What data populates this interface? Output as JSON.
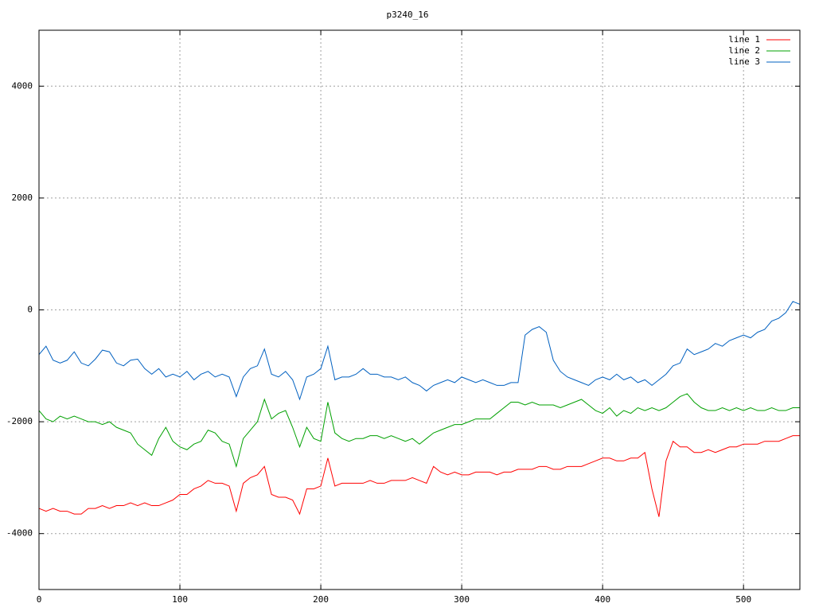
{
  "chart_data": {
    "type": "line",
    "title": "p3240_16",
    "x": [
      0,
      5,
      10,
      15,
      20,
      25,
      30,
      35,
      40,
      45,
      50,
      55,
      60,
      65,
      70,
      75,
      80,
      85,
      90,
      95,
      100,
      105,
      110,
      115,
      120,
      125,
      130,
      135,
      140,
      145,
      150,
      155,
      160,
      165,
      170,
      175,
      180,
      185,
      190,
      195,
      200,
      205,
      210,
      215,
      220,
      225,
      230,
      235,
      240,
      245,
      250,
      255,
      260,
      265,
      270,
      275,
      280,
      285,
      290,
      295,
      300,
      305,
      310,
      315,
      320,
      325,
      330,
      335,
      340,
      345,
      350,
      355,
      360,
      365,
      370,
      375,
      380,
      385,
      390,
      395,
      400,
      405,
      410,
      415,
      420,
      425,
      430,
      435,
      440,
      445,
      450,
      455,
      460,
      465,
      470,
      475,
      480,
      485,
      490,
      495,
      500,
      505,
      510,
      515,
      520,
      525,
      530,
      535,
      540
    ],
    "series": [
      {
        "name": "line 1",
        "color": "#ff0000",
        "values": [
          -3550,
          -3600,
          -3550,
          -3600,
          -3600,
          -3650,
          -3650,
          -3550,
          -3550,
          -3500,
          -3550,
          -3500,
          -3500,
          -3450,
          -3500,
          -3450,
          -3500,
          -3500,
          -3450,
          -3400,
          -3300,
          -3300,
          -3200,
          -3150,
          -3050,
          -3100,
          -3100,
          -3150,
          -3600,
          -3100,
          -3000,
          -2950,
          -2800,
          -3300,
          -3350,
          -3350,
          -3400,
          -3650,
          -3200,
          -3200,
          -3150,
          -2650,
          -3150,
          -3100,
          -3100,
          -3100,
          -3100,
          -3050,
          -3100,
          -3100,
          -3050,
          -3050,
          -3050,
          -3000,
          -3050,
          -3100,
          -2800,
          -2900,
          -2950,
          -2900,
          -2950,
          -2950,
          -2900,
          -2900,
          -2900,
          -2950,
          -2900,
          -2900,
          -2850,
          -2850,
          -2850,
          -2800,
          -2800,
          -2850,
          -2850,
          -2800,
          -2800,
          -2800,
          -2750,
          -2700,
          -2650,
          -2650,
          -2700,
          -2700,
          -2650,
          -2650,
          -2550,
          -3200,
          -3700,
          -2700,
          -2350,
          -2450,
          -2450,
          -2550,
          -2550,
          -2500,
          -2550,
          -2500,
          -2450,
          -2450,
          -2400,
          -2400,
          -2400,
          -2350,
          -2350,
          -2350,
          -2300,
          -2250,
          -2250
        ]
      },
      {
        "name": "line 2",
        "color": "#00a000",
        "values": [
          -1800,
          -1950,
          -2000,
          -1900,
          -1950,
          -1900,
          -1950,
          -2000,
          -2000,
          -2050,
          -2000,
          -2100,
          -2150,
          -2200,
          -2400,
          -2500,
          -2600,
          -2300,
          -2100,
          -2350,
          -2450,
          -2500,
          -2400,
          -2350,
          -2150,
          -2200,
          -2350,
          -2400,
          -2800,
          -2300,
          -2150,
          -2000,
          -1600,
          -1950,
          -1850,
          -1800,
          -2100,
          -2450,
          -2100,
          -2300,
          -2350,
          -1650,
          -2200,
          -2300,
          -2350,
          -2300,
          -2300,
          -2250,
          -2250,
          -2300,
          -2250,
          -2300,
          -2350,
          -2300,
          -2400,
          -2300,
          -2200,
          -2150,
          -2100,
          -2050,
          -2050,
          -2000,
          -1950,
          -1950,
          -1950,
          -1850,
          -1750,
          -1650,
          -1650,
          -1700,
          -1650,
          -1700,
          -1700,
          -1700,
          -1750,
          -1700,
          -1650,
          -1600,
          -1700,
          -1800,
          -1850,
          -1750,
          -1900,
          -1800,
          -1850,
          -1750,
          -1800,
          -1750,
          -1800,
          -1750,
          -1650,
          -1550,
          -1500,
          -1650,
          -1750,
          -1800,
          -1800,
          -1750,
          -1800,
          -1750,
          -1800,
          -1750,
          -1800,
          -1800,
          -1750,
          -1800,
          -1800,
          -1750,
          -1750
        ]
      },
      {
        "name": "line 3",
        "color": "#0060c0",
        "values": [
          -800,
          -650,
          -900,
          -950,
          -900,
          -750,
          -950,
          -1000,
          -880,
          -720,
          -750,
          -950,
          -1000,
          -900,
          -880,
          -1050,
          -1150,
          -1050,
          -1200,
          -1150,
          -1200,
          -1100,
          -1250,
          -1150,
          -1100,
          -1200,
          -1150,
          -1200,
          -1550,
          -1200,
          -1050,
          -1000,
          -700,
          -1150,
          -1200,
          -1100,
          -1250,
          -1600,
          -1200,
          -1150,
          -1050,
          -650,
          -1250,
          -1200,
          -1200,
          -1150,
          -1050,
          -1150,
          -1150,
          -1200,
          -1200,
          -1250,
          -1200,
          -1300,
          -1350,
          -1450,
          -1350,
          -1300,
          -1250,
          -1300,
          -1200,
          -1250,
          -1300,
          -1250,
          -1300,
          -1350,
          -1350,
          -1300,
          -1300,
          -450,
          -350,
          -300,
          -400,
          -900,
          -1100,
          -1200,
          -1250,
          -1300,
          -1350,
          -1250,
          -1200,
          -1250,
          -1150,
          -1250,
          -1200,
          -1300,
          -1250,
          -1350,
          -1250,
          -1150,
          -1000,
          -950,
          -700,
          -800,
          -750,
          -700,
          -600,
          -650,
          -550,
          -500,
          -450,
          -500,
          -400,
          -350,
          -200,
          -150,
          -50,
          150,
          100
        ]
      }
    ],
    "xlim": [
      0,
      540
    ],
    "xticks": [
      0,
      100,
      200,
      300,
      400,
      500
    ],
    "ylim": [
      -5000,
      5000
    ],
    "yticks": [
      -4000,
      -2000,
      0,
      2000,
      4000
    ],
    "grid": true,
    "legend": "top-right"
  }
}
